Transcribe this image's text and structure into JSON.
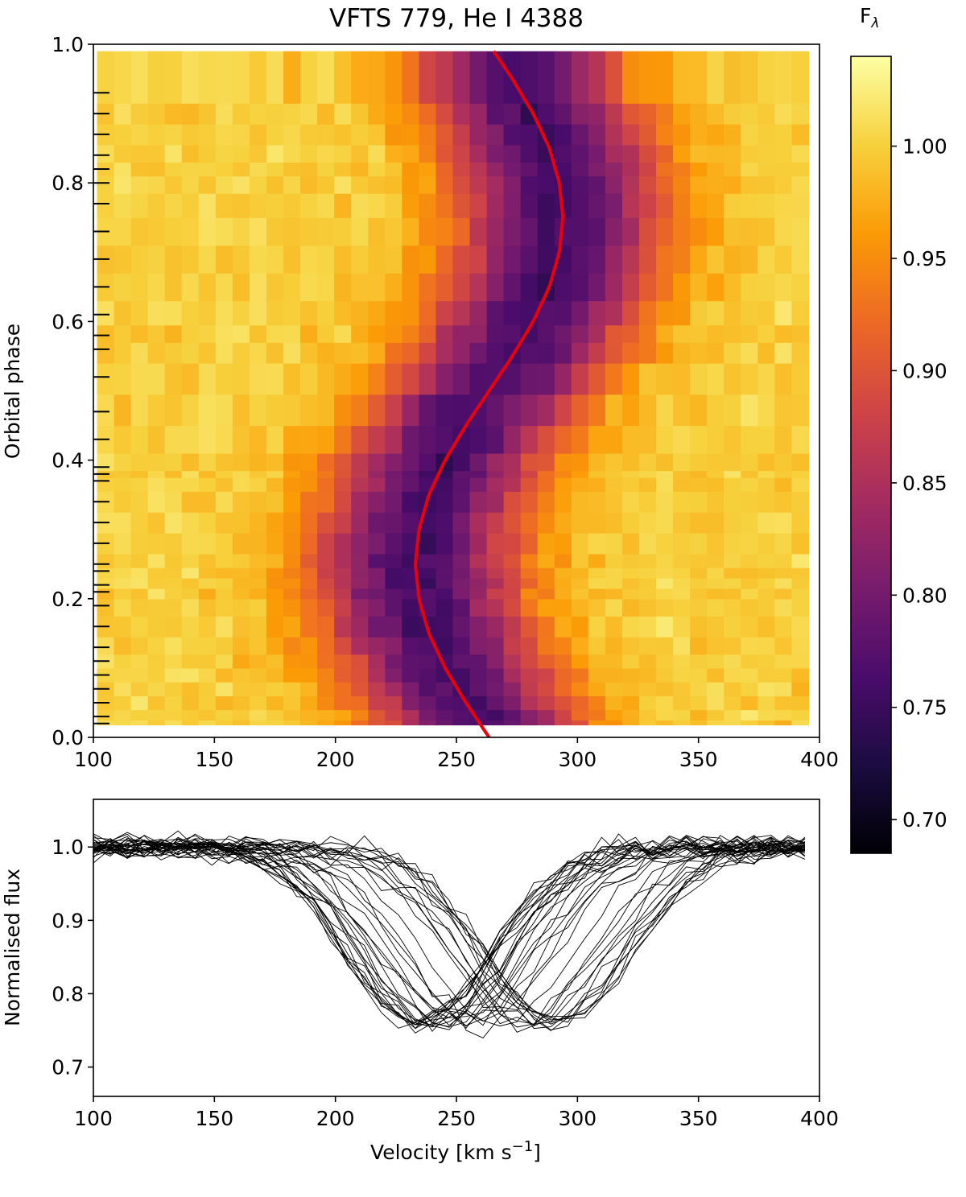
{
  "chart_data": [
    {
      "type": "heatmap",
      "title": "VFTS 779, He I 4388",
      "xlabel": "",
      "ylabel": "Orbital phase",
      "xlim": [
        100,
        400
      ],
      "ylim": [
        0.0,
        1.0
      ],
      "x_ticks": [
        "100",
        "150",
        "200",
        "250",
        "300",
        "350",
        "400"
      ],
      "y_ticks": [
        "0.0",
        "0.2",
        "0.4",
        "0.6",
        "0.8",
        "1.0"
      ],
      "velocity_bins": [
        105,
        112,
        119,
        126,
        133,
        140,
        147,
        154,
        161,
        168,
        175,
        182,
        189,
        196,
        203,
        210,
        217,
        224,
        231,
        238,
        245,
        252,
        259,
        266,
        273,
        280,
        287,
        294,
        301,
        308,
        315,
        322,
        329,
        336,
        343,
        350,
        357,
        364,
        371,
        378,
        385,
        392
      ],
      "observed_phases": [
        0.02,
        0.03,
        0.05,
        0.07,
        0.09,
        0.11,
        0.13,
        0.16,
        0.19,
        0.21,
        0.22,
        0.24,
        0.25,
        0.28,
        0.31,
        0.34,
        0.37,
        0.38,
        0.39,
        0.43,
        0.47,
        0.52,
        0.56,
        0.58,
        0.61,
        0.65,
        0.69,
        0.73,
        0.77,
        0.8,
        0.82,
        0.84,
        0.87,
        0.9,
        0.93
      ],
      "line_profile_model": {
        "continuum": 1.0,
        "depth": 0.24,
        "gaussian_sigma_kms": 30,
        "core_velocity_kms": 245,
        "orbital_half_amplitude_kms": 31
      },
      "rv_curve": {
        "color": "#e8000b",
        "phase": [
          0.0,
          0.05,
          0.1,
          0.15,
          0.2,
          0.25,
          0.3,
          0.35,
          0.4,
          0.45,
          0.5,
          0.55,
          0.6,
          0.65,
          0.7,
          0.75,
          0.8,
          0.85,
          0.9,
          0.95,
          0.99
        ],
        "velocity": [
          263.5,
          253.9,
          245.3,
          238.6,
          234.5,
          233.0,
          234.5,
          238.6,
          245.3,
          253.9,
          263.5,
          273.1,
          281.7,
          288.4,
          292.5,
          294.0,
          292.5,
          288.4,
          281.7,
          273.1,
          265.4
        ]
      },
      "colorbar": {
        "label": "F",
        "label_subscript": "λ",
        "range": [
          0.685,
          1.04
        ],
        "ticks": [
          "0.70",
          "0.75",
          "0.80",
          "0.85",
          "0.90",
          "0.95",
          "1.00"
        ],
        "colormap": "inferno",
        "colormap_stops": [
          "#000004",
          "#1b0c41",
          "#4a0c6b",
          "#781c6d",
          "#a52c60",
          "#cf4446",
          "#ed6925",
          "#fb9b06",
          "#f7d13d",
          "#fcffa4"
        ]
      }
    },
    {
      "type": "line",
      "title": "",
      "xlabel": "Velocity [km s",
      "xlabel_superscript": "−1",
      "xlabel_suffix": "]",
      "ylabel": "Normalised flux",
      "xlim": [
        100,
        400
      ],
      "ylim": [
        0.66,
        1.065
      ],
      "x_ticks": [
        "100",
        "150",
        "200",
        "250",
        "300",
        "350",
        "400"
      ],
      "y_ticks": [
        "0.7",
        "0.8",
        "0.9",
        "1.0"
      ],
      "series_color": "#000000",
      "series_description_count": 35,
      "velocity_bins": [
        100,
        107,
        114,
        121,
        128,
        135,
        142,
        149,
        156,
        163,
        170,
        177,
        184,
        191,
        198,
        205,
        212,
        219,
        226,
        233,
        240,
        247,
        254,
        261,
        268,
        275,
        282,
        289,
        296,
        303,
        310,
        317,
        324,
        331,
        338,
        345,
        352,
        359,
        366,
        373,
        380,
        387,
        394
      ]
    }
  ]
}
